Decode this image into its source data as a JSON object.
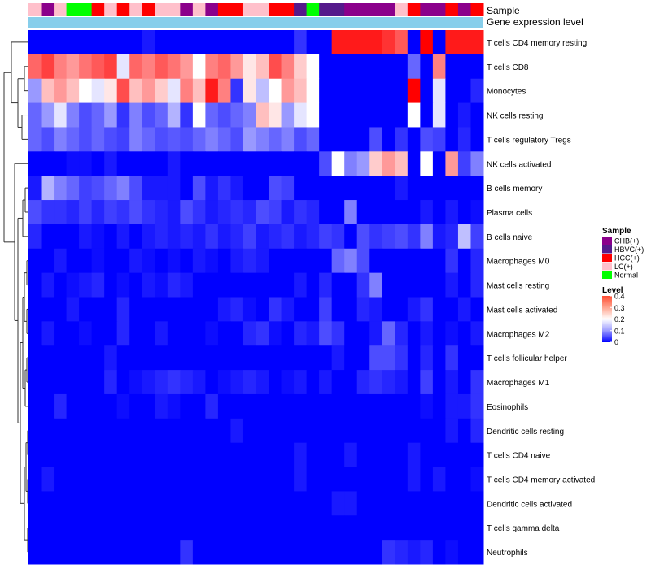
{
  "chart_data": {
    "type": "heatmap",
    "annotation_titles": {
      "sample": "Sample",
      "expression": "Gene expression level"
    },
    "sample_groups": [
      "LC(+)",
      "CHB(+)",
      "LC(+)",
      "Normal",
      "Normal",
      "HCC(+)",
      "LC(+)",
      "HCC(+)",
      "LC(+)",
      "HCC(+)",
      "LC(+)",
      "LC(+)",
      "CHB(+)",
      "LC(+)",
      "CHB(+)",
      "HCC(+)",
      "HCC(+)",
      "LC(+)",
      "LC(+)",
      "HCC(+)",
      "HCC(+)",
      "HBVC(+)",
      "Normal",
      "HBVC(+)",
      "HBVC(+)",
      "CHB(+)",
      "CHB(+)",
      "CHB(+)",
      "CHB(+)",
      "LC(+)",
      "HCC(+)",
      "CHB(+)",
      "CHB(+)",
      "HCC(+)",
      "CHB(+)",
      "HCC(+)"
    ],
    "rows": [
      {
        "name": "T cells CD4 memory resting",
        "values": [
          0,
          0,
          0,
          0,
          0,
          0,
          0,
          0,
          0,
          0.02,
          0,
          0,
          0,
          0,
          0,
          0,
          0,
          0,
          0,
          0,
          0,
          0.04,
          0,
          0,
          0.38,
          0.38,
          0.38,
          0.38,
          0.36,
          0.33,
          0,
          0.4,
          0,
          0.38,
          0.38,
          0.38
        ]
      },
      {
        "name": "T cells CD8",
        "values": [
          0.32,
          0.35,
          0.3,
          0.28,
          0.31,
          0.33,
          0.35,
          0.18,
          0.32,
          0.3,
          0.33,
          0.31,
          0.28,
          0.2,
          0.3,
          0.32,
          0.28,
          0.22,
          0.25,
          0.34,
          0.3,
          0.24,
          0.2,
          0,
          0,
          0,
          0,
          0,
          0,
          0,
          0.08,
          0,
          0.3,
          0,
          0,
          0
        ]
      },
      {
        "name": "Monocytes",
        "values": [
          0.12,
          0.25,
          0.28,
          0.25,
          0.2,
          0.18,
          0.22,
          0.34,
          0.25,
          0.28,
          0.24,
          0.18,
          0.3,
          0.25,
          0.38,
          0.3,
          0.04,
          0.22,
          0.15,
          0.2,
          0.28,
          0.25,
          0.2,
          0,
          0,
          0,
          0,
          0,
          0,
          0,
          0.4,
          0,
          0.18,
          0,
          0,
          0.03
        ]
      },
      {
        "name": "NK cells resting",
        "values": [
          0.08,
          0.12,
          0.18,
          0.1,
          0.06,
          0.08,
          0.12,
          0.04,
          0.1,
          0.06,
          0.08,
          0.14,
          0.04,
          0.2,
          0.08,
          0.06,
          0.08,
          0.1,
          0.25,
          0.22,
          0.12,
          0.18,
          0.2,
          0,
          0,
          0,
          0,
          0,
          0,
          0,
          0.2,
          0,
          0.18,
          0,
          0.02,
          0
        ]
      },
      {
        "name": "T cells regulatory  Tregs",
        "values": [
          0.08,
          0.06,
          0.1,
          0.08,
          0.06,
          0.08,
          0.06,
          0.05,
          0.1,
          0.08,
          0.06,
          0.07,
          0.06,
          0.08,
          0.1,
          0.08,
          0.06,
          0.12,
          0.1,
          0.08,
          0.1,
          0.06,
          0.08,
          0,
          0,
          0,
          0,
          0.06,
          0,
          0.04,
          0,
          0.06,
          0.05,
          0,
          0.03,
          0
        ]
      },
      {
        "name": "NK cells activated",
        "values": [
          0,
          0,
          0,
          0.01,
          0.01,
          0,
          0.02,
          0,
          0,
          0,
          0,
          0.02,
          0,
          0,
          0,
          0,
          0,
          0,
          0,
          0,
          0,
          0,
          0,
          0.06,
          0.2,
          0.1,
          0.12,
          0.24,
          0.28,
          0.25,
          0,
          0.2,
          0,
          0.28,
          0.05,
          0.1
        ]
      },
      {
        "name": "B cells memory",
        "values": [
          0.02,
          0.14,
          0.1,
          0.08,
          0.05,
          0.06,
          0.08,
          0.1,
          0.06,
          0.02,
          0.02,
          0.02,
          0,
          0.06,
          0.02,
          0.04,
          0.02,
          0,
          0,
          0.06,
          0.05,
          0,
          0,
          0,
          0,
          0,
          0,
          0,
          0,
          0.02,
          0,
          0,
          0,
          0,
          0,
          0
        ]
      },
      {
        "name": "Plasma cells",
        "values": [
          0.06,
          0.04,
          0.04,
          0.03,
          0.05,
          0.03,
          0.05,
          0.04,
          0.06,
          0.04,
          0.03,
          0.02,
          0.06,
          0.04,
          0.02,
          0.03,
          0.04,
          0.03,
          0.06,
          0.05,
          0.02,
          0.04,
          0.03,
          0,
          0,
          0.1,
          0,
          0,
          0,
          0,
          0,
          0.02,
          0,
          0.02,
          0,
          0.01
        ]
      },
      {
        "name": "B cells naive",
        "values": [
          0.03,
          0,
          0,
          0,
          0.02,
          0.01,
          0,
          0.02,
          0,
          0.02,
          0.03,
          0.02,
          0.03,
          0.02,
          0.04,
          0.02,
          0.03,
          0.05,
          0.02,
          0.03,
          0.04,
          0.02,
          0.03,
          0.05,
          0.04,
          0,
          0.06,
          0.04,
          0.05,
          0.06,
          0.04,
          0.1,
          0.02,
          0.03,
          0.15,
          0.05
        ]
      },
      {
        "name": "Macrophages M0",
        "values": [
          0,
          0,
          0.02,
          0,
          0,
          0.01,
          0,
          0,
          0.02,
          0.01,
          0,
          0.01,
          0,
          0.02,
          0.01,
          0,
          0.02,
          0.03,
          0.02,
          0,
          0,
          0,
          0,
          0,
          0.08,
          0.1,
          0.06,
          0,
          0,
          0,
          0,
          0,
          0,
          0.04,
          0,
          0.03
        ]
      },
      {
        "name": "Mast cells resting",
        "values": [
          0,
          0.02,
          0,
          0.01,
          0.02,
          0.03,
          0,
          0.01,
          0,
          0.02,
          0.01,
          0.03,
          0.02,
          0,
          0,
          0,
          0,
          0,
          0,
          0,
          0,
          0.02,
          0,
          0.03,
          0,
          0,
          0.04,
          0.1,
          0,
          0,
          0,
          0,
          0,
          0.02,
          0,
          0.03
        ]
      },
      {
        "name": "Mast cells activated",
        "values": [
          0,
          0,
          0,
          0.02,
          0,
          0,
          0,
          0.03,
          0,
          0,
          0,
          0,
          0,
          0,
          0,
          0.02,
          0.03,
          0.01,
          0,
          0.04,
          0.02,
          0,
          0,
          0.05,
          0,
          0,
          0.03,
          0.02,
          0,
          0,
          0.02,
          0.04,
          0,
          0,
          0.02,
          0
        ]
      },
      {
        "name": "Macrophages M2",
        "values": [
          0,
          0.02,
          0,
          0,
          0.01,
          0,
          0,
          0.03,
          0,
          0,
          0.02,
          0,
          0,
          0,
          0.01,
          0,
          0,
          0.03,
          0.04,
          0.01,
          0,
          0.03,
          0.02,
          0.06,
          0.04,
          0,
          0,
          0.02,
          0.08,
          0.03,
          0,
          0.02,
          0,
          0.01,
          0,
          0.02
        ]
      },
      {
        "name": "T cells follicular helper",
        "values": [
          0,
          0,
          0,
          0,
          0,
          0,
          0.02,
          0,
          0,
          0,
          0,
          0,
          0,
          0,
          0,
          0,
          0,
          0,
          0,
          0,
          0,
          0,
          0,
          0,
          0.02,
          0,
          0,
          0.06,
          0.06,
          0.04,
          0,
          0.03,
          0,
          0.04,
          0,
          0
        ]
      },
      {
        "name": "Macrophages M1",
        "values": [
          0,
          0,
          0,
          0,
          0,
          0,
          0.03,
          0,
          0.01,
          0.02,
          0.03,
          0.04,
          0.03,
          0.02,
          0,
          0.01,
          0.02,
          0.03,
          0.02,
          0,
          0.01,
          0.02,
          0,
          0.02,
          0,
          0,
          0.03,
          0.04,
          0.03,
          0.02,
          0,
          0.05,
          0,
          0.02,
          0,
          0.04
        ]
      },
      {
        "name": "Eosinophils",
        "values": [
          0,
          0,
          0.03,
          0,
          0,
          0,
          0,
          0.01,
          0,
          0,
          0.02,
          0.01,
          0,
          0,
          0.03,
          0,
          0,
          0,
          0,
          0,
          0,
          0,
          0,
          0,
          0,
          0,
          0,
          0,
          0,
          0,
          0,
          0.01,
          0,
          0.02,
          0.02,
          0.04
        ]
      },
      {
        "name": "Dendritic cells resting",
        "values": [
          0,
          0,
          0,
          0,
          0,
          0,
          0,
          0,
          0,
          0,
          0,
          0,
          0,
          0,
          0,
          0,
          0.02,
          0,
          0,
          0,
          0,
          0,
          0,
          0,
          0,
          0,
          0,
          0,
          0,
          0,
          0,
          0,
          0,
          0.02,
          0,
          0.03
        ]
      },
      {
        "name": "T cells CD4 naive",
        "values": [
          0,
          0,
          0,
          0,
          0,
          0,
          0,
          0,
          0,
          0,
          0,
          0,
          0,
          0,
          0,
          0,
          0,
          0,
          0,
          0,
          0,
          0.02,
          0,
          0,
          0,
          0.02,
          0,
          0,
          0,
          0,
          0.02,
          0,
          0,
          0,
          0,
          0
        ]
      },
      {
        "name": "T cells CD4 memory activated",
        "values": [
          0,
          0.02,
          0,
          0,
          0,
          0,
          0,
          0,
          0,
          0,
          0,
          0,
          0,
          0,
          0,
          0,
          0,
          0,
          0,
          0,
          0,
          0.02,
          0,
          0,
          0,
          0,
          0,
          0,
          0,
          0,
          0.02,
          0,
          0.02,
          0,
          0,
          0.01
        ]
      },
      {
        "name": "Dendritic cells activated",
        "values": [
          0,
          0,
          0,
          0,
          0,
          0,
          0,
          0,
          0,
          0,
          0,
          0,
          0,
          0,
          0,
          0,
          0,
          0,
          0,
          0,
          0,
          0,
          0,
          0,
          0.02,
          0.02,
          0,
          0,
          0,
          0,
          0,
          0,
          0,
          0,
          0,
          0
        ]
      },
      {
        "name": "T cells gamma delta",
        "values": [
          0,
          0,
          0,
          0,
          0,
          0,
          0,
          0,
          0,
          0,
          0,
          0,
          0,
          0,
          0,
          0,
          0,
          0,
          0,
          0,
          0,
          0,
          0,
          0,
          0,
          0,
          0,
          0,
          0,
          0,
          0,
          0,
          0,
          0,
          0,
          0
        ]
      },
      {
        "name": "Neutrophils",
        "values": [
          0,
          0,
          0,
          0,
          0,
          0,
          0,
          0,
          0,
          0,
          0,
          0,
          0.04,
          0,
          0,
          0,
          0,
          0,
          0,
          0,
          0,
          0,
          0,
          0,
          0,
          0,
          0,
          0,
          0.04,
          0.03,
          0.02,
          0.03,
          0,
          0.01,
          0,
          0
        ]
      }
    ],
    "color_scale": {
      "low": "#0000ff",
      "mid": "#ffffff",
      "high": "#ff0000",
      "range": [
        0,
        0.4
      ]
    },
    "legend_sample": {
      "title": "Sample",
      "entries": [
        {
          "label": "CHB(+)",
          "color": "#8b008b"
        },
        {
          "label": "HBVC(+)",
          "color": "#551a8b"
        },
        {
          "label": "HCC(+)",
          "color": "#ff0000"
        },
        {
          "label": "LC(+)",
          "color": "#ffc0cb"
        },
        {
          "label": "Normal",
          "color": "#00ff00"
        }
      ]
    },
    "legend_level": {
      "title": "Level",
      "ticks": [
        "0.4",
        "0.3",
        "0.2",
        "0.1",
        "0"
      ],
      "tick_values": [
        0.4,
        0.3,
        0.2,
        0.1,
        0
      ]
    },
    "expression_bar_color": "#87ceeb",
    "legend_position": "right"
  }
}
